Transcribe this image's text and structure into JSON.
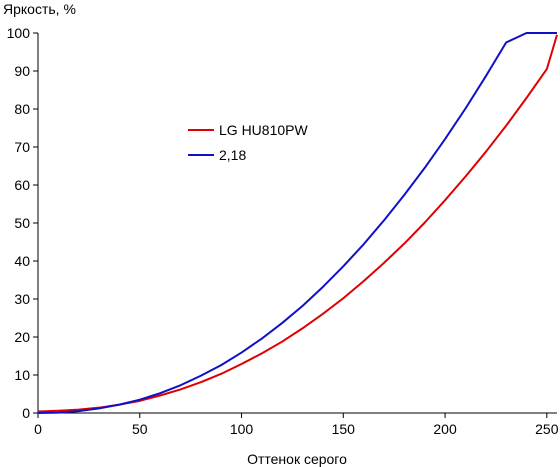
{
  "chart_data": {
    "type": "line",
    "title": "",
    "ylabel": "Яркость, %",
    "xlabel": "Оттенок серого",
    "xlim": [
      0,
      255
    ],
    "ylim": [
      0,
      100
    ],
    "x_ticks": [
      "0",
      "50",
      "100",
      "150",
      "200",
      "250"
    ],
    "y_ticks": [
      "0",
      "10",
      "20",
      "30",
      "40",
      "50",
      "60",
      "70",
      "80",
      "90",
      "100"
    ],
    "grid": false,
    "legend_position": "center-left",
    "series": [
      {
        "name": "LG HU810PW",
        "color": "#e00000",
        "x": [
          0,
          10,
          20,
          30,
          40,
          50,
          60,
          70,
          80,
          90,
          100,
          110,
          120,
          130,
          140,
          150,
          160,
          170,
          180,
          190,
          200,
          210,
          220,
          230,
          240,
          250,
          255
        ],
        "y": [
          0.4,
          0.6,
          0.9,
          1.4,
          2.2,
          3.2,
          4.6,
          6.2,
          8.1,
          10.3,
          12.9,
          15.7,
          18.8,
          22.3,
          26.1,
          30.2,
          34.7,
          39.5,
          44.6,
          50.1,
          56.0,
          62.2,
          68.7,
          75.6,
          82.9,
          90.5,
          99.5
        ]
      },
      {
        "name": "2,18",
        "color": "#1010c8",
        "x": [
          0,
          10,
          20,
          30,
          40,
          50,
          60,
          70,
          80,
          90,
          100,
          110,
          120,
          130,
          140,
          150,
          160,
          170,
          180,
          190,
          200,
          210,
          220,
          230,
          240,
          250,
          255
        ],
        "y": [
          0,
          0.11,
          0.5,
          1.2,
          2.2,
          3.5,
          5.2,
          7.3,
          9.8,
          12.6,
          15.9,
          19.6,
          23.7,
          28.2,
          33.2,
          38.6,
          44.4,
          50.7,
          57.4,
          64.5,
          72.1,
          80.1,
          88.6,
          97.5,
          100,
          100,
          100
        ]
      }
    ]
  }
}
